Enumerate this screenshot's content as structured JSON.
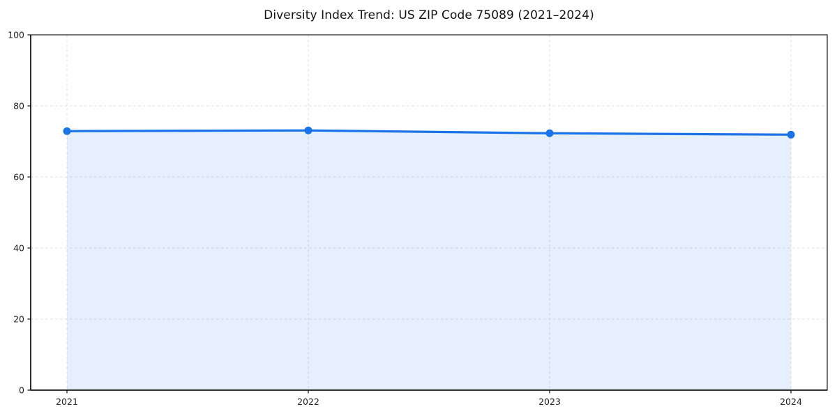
{
  "page": {
    "background": "#ffffff"
  },
  "chart_data": {
    "type": "area",
    "title": "Diversity Index Trend: US ZIP Code 75089 (2021–2024)",
    "categories": [
      "2021",
      "2022",
      "2023",
      "2024"
    ],
    "series": [
      {
        "name": "Diversity Index",
        "values": [
          72.9,
          73.1,
          72.3,
          71.9
        ]
      }
    ],
    "xlabel": "",
    "ylabel": "",
    "ylim": [
      0,
      100
    ],
    "yticks": [
      0,
      20,
      40,
      60,
      80,
      100
    ],
    "grid": true,
    "grid_style": "dashed",
    "legend_position": "none",
    "colors": {
      "line": "#1a73e8",
      "marker": "#1a73e8",
      "fill": "rgba(26,115,232,0.11)",
      "grid": "#dedede",
      "spine": "#1a1a1a",
      "title": "#111111",
      "tick_label": "#222222"
    }
  }
}
